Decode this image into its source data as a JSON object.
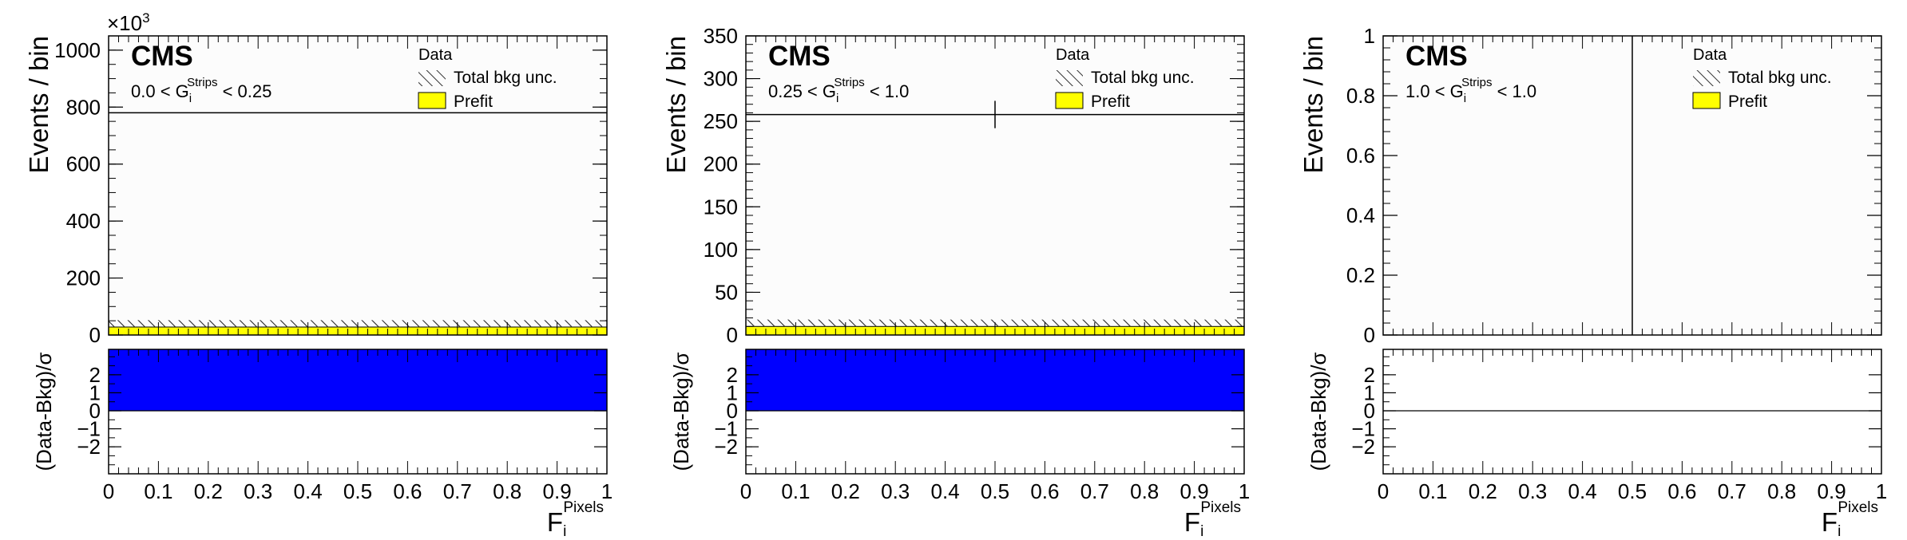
{
  "chart_data": [
    {
      "type": "bar",
      "experiment_label": "CMS",
      "selection": {
        "pre": "0.0 < G",
        "sub": "i",
        "sup": "Strips",
        "post": " < 0.25"
      },
      "ylabel": "Events / bin",
      "y_exponent": {
        "base": "×10",
        "exp": "3"
      },
      "ylim": [
        0,
        1050
      ],
      "yticks": [
        {
          "v": 0,
          "l": "0"
        },
        {
          "v": 200,
          "l": "200"
        },
        {
          "v": 400,
          "l": "400"
        },
        {
          "v": 600,
          "l": "600"
        },
        {
          "v": 800,
          "l": "800"
        },
        {
          "v": 1000,
          "l": "1000"
        }
      ],
      "y_minor_step": 50,
      "xlim": [
        0,
        1
      ],
      "xticks": [
        "0",
        "0.1",
        "0.2",
        "0.3",
        "0.4",
        "0.5",
        "0.6",
        "0.7",
        "0.8",
        "0.9",
        "1"
      ],
      "xlabel": {
        "base": "F",
        "sub": "i",
        "sup": "Pixels"
      },
      "legend": [
        "Data",
        "Total bkg unc.",
        "Prefit"
      ],
      "data_points": [
        {
          "x": 0.5,
          "y": 780,
          "xerr": 0.5,
          "yerr": 0
        }
      ],
      "prefit": {
        "x0": 0,
        "x1": 1,
        "y": 28
      },
      "unc_band": {
        "x0": 0,
        "x1": 1,
        "lo": 28,
        "hi": 52
      },
      "ratio": {
        "ylabel": "(Data-Bkg)/σ",
        "ylim": [
          -3.5,
          3.5
        ],
        "yticks": [
          {
            "v": -2,
            "l": "−2"
          },
          {
            "v": -1,
            "l": "−1"
          },
          {
            "v": 0,
            "l": "0"
          },
          {
            "v": 1,
            "l": "1"
          },
          {
            "v": 2,
            "l": "2"
          }
        ],
        "bars": [
          {
            "x0": 0,
            "x1": 1,
            "value": 3.5
          }
        ]
      }
    },
    {
      "type": "bar",
      "experiment_label": "CMS",
      "selection": {
        "pre": "0.25 < G",
        "sub": "i",
        "sup": "Strips",
        "post": " < 1.0"
      },
      "ylabel": "Events / bin",
      "ylim": [
        0,
        350
      ],
      "yticks": [
        {
          "v": 0,
          "l": "0"
        },
        {
          "v": 50,
          "l": "50"
        },
        {
          "v": 100,
          "l": "100"
        },
        {
          "v": 150,
          "l": "150"
        },
        {
          "v": 200,
          "l": "200"
        },
        {
          "v": 250,
          "l": "250"
        },
        {
          "v": 300,
          "l": "300"
        },
        {
          "v": 350,
          "l": "350"
        }
      ],
      "y_minor_step": 10,
      "xlim": [
        0,
        1
      ],
      "xticks": [
        "0",
        "0.1",
        "0.2",
        "0.3",
        "0.4",
        "0.5",
        "0.6",
        "0.7",
        "0.8",
        "0.9",
        "1"
      ],
      "xlabel": {
        "base": "F",
        "sub": "i",
        "sup": "Pixels"
      },
      "legend": [
        "Data",
        "Total bkg unc.",
        "Prefit"
      ],
      "data_points": [
        {
          "x": 0.5,
          "y": 258,
          "xerr": 0.5,
          "yerr": 16
        }
      ],
      "prefit": {
        "x0": 0,
        "x1": 1,
        "y": 10
      },
      "unc_band": {
        "x0": 0,
        "x1": 1,
        "lo": 10,
        "hi": 18
      },
      "ratio": {
        "ylabel": "(Data-Bkg)/σ",
        "ylim": [
          -3.5,
          3.5
        ],
        "yticks": [
          {
            "v": -2,
            "l": "−2"
          },
          {
            "v": -1,
            "l": "−1"
          },
          {
            "v": 0,
            "l": "0"
          },
          {
            "v": 1,
            "l": "1"
          },
          {
            "v": 2,
            "l": "2"
          }
        ],
        "bars": [
          {
            "x0": 0,
            "x1": 1,
            "value": 3.5
          }
        ]
      }
    },
    {
      "type": "bar",
      "experiment_label": "CMS",
      "selection": {
        "pre": "1.0 < G",
        "sub": "i",
        "sup": "Strips",
        "post": " < 1.0"
      },
      "ylabel": "Events / bin",
      "ylim": [
        0,
        1
      ],
      "yticks": [
        {
          "v": 0,
          "l": "0"
        },
        {
          "v": 0.2,
          "l": "0.2"
        },
        {
          "v": 0.4,
          "l": "0.4"
        },
        {
          "v": 0.6,
          "l": "0.6"
        },
        {
          "v": 0.8,
          "l": "0.8"
        },
        {
          "v": 1,
          "l": "1"
        }
      ],
      "y_minor_step": 0.04,
      "xlim": [
        0,
        1
      ],
      "xticks": [
        "0",
        "0.1",
        "0.2",
        "0.3",
        "0.4",
        "0.5",
        "0.6",
        "0.7",
        "0.8",
        "0.9",
        "1"
      ],
      "xlabel": {
        "base": "F",
        "sub": "i",
        "sup": "Pixels"
      },
      "legend": [
        "Data",
        "Total bkg unc.",
        "Prefit"
      ],
      "data_points": [
        {
          "x": 0.5,
          "y": 0.5,
          "xerr": 0,
          "yerr": 0.5
        }
      ],
      "prefit": null,
      "unc_band": null,
      "ratio": {
        "ylabel": "(Data-Bkg)/σ",
        "ylim": [
          -3.5,
          3.5
        ],
        "yticks": [
          {
            "v": -2,
            "l": "−2"
          },
          {
            "v": -1,
            "l": "−1"
          },
          {
            "v": 0,
            "l": "0"
          },
          {
            "v": 1,
            "l": "1"
          },
          {
            "v": 2,
            "l": "2"
          }
        ],
        "bars": []
      }
    }
  ],
  "colors": {
    "prefit_fill": "#ffff00",
    "ratio_fill": "#0000ff",
    "axis": "#000000",
    "plot_bg": "#fcfcfc"
  }
}
